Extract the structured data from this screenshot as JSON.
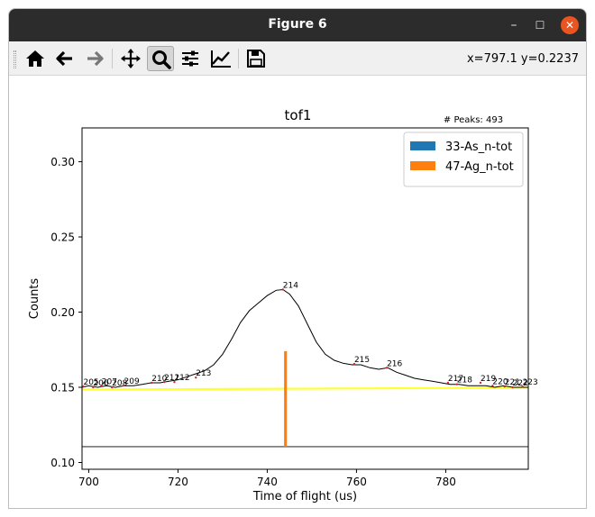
{
  "window": {
    "title": "Figure 6"
  },
  "toolbar": {
    "buttons": [
      {
        "name": "home-button",
        "icon": "home-icon"
      },
      {
        "name": "back-button",
        "icon": "arrow-left-icon"
      },
      {
        "name": "forward-button",
        "icon": "arrow-right-icon"
      },
      {
        "name": "pan-button",
        "icon": "move-icon"
      },
      {
        "name": "zoom-button",
        "icon": "magnifier-icon",
        "active": true
      },
      {
        "name": "subplots-button",
        "icon": "sliders-icon"
      },
      {
        "name": "edit-axes-button",
        "icon": "line-chart-icon"
      },
      {
        "name": "save-button",
        "icon": "floppy-disk-icon"
      }
    ],
    "coords": "x=797.1 y=0.2237"
  },
  "chart_data": {
    "type": "line",
    "title": "tof1",
    "annotation": "# Peaks: 493",
    "xlabel": "Time of flight (us)",
    "ylabel": "Counts",
    "xlim": [
      698.5,
      798.5
    ],
    "ylim": [
      0.0955,
      0.3225
    ],
    "xticks": [
      700,
      720,
      740,
      760,
      780
    ],
    "xtick_labels": [
      "700",
      "720",
      "740",
      "760",
      "780"
    ],
    "yticks": [
      0.1,
      0.15,
      0.2,
      0.25,
      0.3
    ],
    "ytick_labels": [
      "0.10",
      "0.15",
      "0.20",
      "0.25",
      "0.30"
    ],
    "grid": false,
    "legend_position": "top-right",
    "legend": [
      {
        "label": "33-As_n-tot",
        "color": "#1f77b4"
      },
      {
        "label": "47-Ag_n-tot",
        "color": "#ff7f0e"
      }
    ],
    "spectrum": {
      "color": "#000000",
      "x": [
        698.5,
        700,
        702,
        704,
        706,
        708,
        710,
        712,
        714,
        716,
        718,
        720,
        722,
        724,
        726,
        728,
        730,
        732,
        734,
        736,
        738,
        740,
        742,
        743.5,
        745,
        747,
        749,
        751,
        753,
        755,
        757,
        759,
        761,
        763,
        765,
        767,
        769,
        771,
        773,
        775,
        777,
        779,
        781,
        783,
        785,
        787,
        789,
        791,
        793,
        795,
        797,
        798.5
      ],
      "y": [
        0.15,
        0.151,
        0.15,
        0.151,
        0.15,
        0.151,
        0.151,
        0.152,
        0.153,
        0.153,
        0.154,
        0.155,
        0.157,
        0.159,
        0.161,
        0.165,
        0.172,
        0.182,
        0.193,
        0.201,
        0.206,
        0.211,
        0.2145,
        0.215,
        0.212,
        0.204,
        0.192,
        0.18,
        0.172,
        0.168,
        0.166,
        0.165,
        0.165,
        0.163,
        0.162,
        0.163,
        0.16,
        0.158,
        0.156,
        0.155,
        0.154,
        0.153,
        0.152,
        0.152,
        0.151,
        0.151,
        0.151,
        0.15,
        0.151,
        0.15,
        0.15,
        0.15
      ]
    },
    "baseline": {
      "color": "#ffff33",
      "x": [
        698.5,
        798.5
      ],
      "y": [
        0.1485,
        0.1497
      ]
    },
    "reference_line": {
      "color": "#000000",
      "y": 0.1105
    },
    "bars": [
      {
        "series": "47-Ag_n-tot",
        "x": 744.1,
        "y0": 0.1105,
        "y1": 0.174,
        "color": "#ff7f0e"
      }
    ],
    "peaks": [
      {
        "label": "205",
        "x": 698.8,
        "y": 0.1505
      },
      {
        "label": "206",
        "x": 701.0,
        "y": 0.15
      },
      {
        "label": "207",
        "x": 702.9,
        "y": 0.151
      },
      {
        "label": "208",
        "x": 705.2,
        "y": 0.15
      },
      {
        "label": "209",
        "x": 707.9,
        "y": 0.1512
      },
      {
        "label": "210",
        "x": 714.1,
        "y": 0.153
      },
      {
        "label": "211",
        "x": 716.9,
        "y": 0.1535
      },
      {
        "label": "212",
        "x": 719.2,
        "y": 0.1535
      },
      {
        "label": "213",
        "x": 724.0,
        "y": 0.1565
      },
      {
        "label": "214",
        "x": 743.5,
        "y": 0.215
      },
      {
        "label": "215",
        "x": 759.5,
        "y": 0.1655
      },
      {
        "label": "216",
        "x": 766.8,
        "y": 0.163
      },
      {
        "label": "217",
        "x": 780.5,
        "y": 0.153
      },
      {
        "label": "218",
        "x": 782.5,
        "y": 0.152
      },
      {
        "label": "219",
        "x": 787.8,
        "y": 0.153
      },
      {
        "label": "220",
        "x": 790.5,
        "y": 0.151
      },
      {
        "label": "221",
        "x": 793.2,
        "y": 0.1505
      },
      {
        "label": "222",
        "x": 795.0,
        "y": 0.15
      },
      {
        "label": "223",
        "x": 797.2,
        "y": 0.1505
      }
    ]
  }
}
